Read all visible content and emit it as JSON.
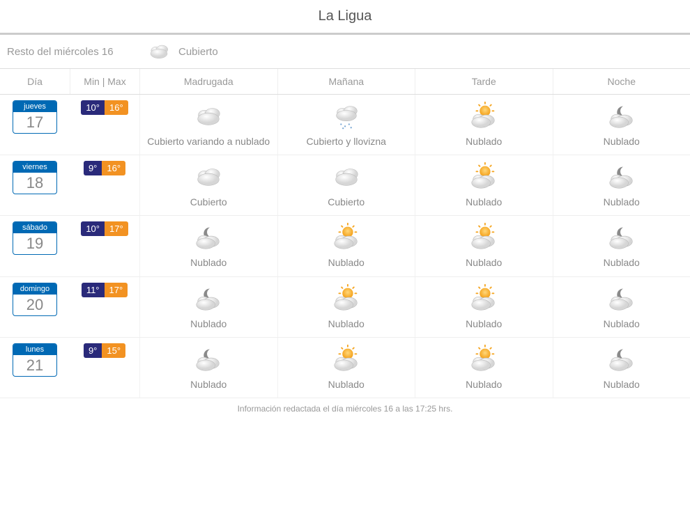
{
  "title": "La Ligua",
  "current": {
    "label": "Resto del miércoles 16",
    "icon": "overcast",
    "condition": "Cubierto"
  },
  "headers": {
    "day": "Día",
    "minmax": "Min | Max",
    "periods": [
      "Madrugada",
      "Mañana",
      "Tarde",
      "Noche"
    ]
  },
  "forecast": [
    {
      "dayName": "jueves",
      "dayNum": "17",
      "min": "10°",
      "max": "16°",
      "periods": [
        {
          "icon": "overcast",
          "label": "Cubierto variando a nublado"
        },
        {
          "icon": "drizzle",
          "label": "Cubierto y llovizna"
        },
        {
          "icon": "partly",
          "label": "Nublado"
        },
        {
          "icon": "night-cloudy",
          "label": "Nublado"
        }
      ]
    },
    {
      "dayName": "viernes",
      "dayNum": "18",
      "min": "9°",
      "max": "16°",
      "periods": [
        {
          "icon": "overcast",
          "label": "Cubierto"
        },
        {
          "icon": "overcast",
          "label": "Cubierto"
        },
        {
          "icon": "partly",
          "label": "Nublado"
        },
        {
          "icon": "night-cloudy",
          "label": "Nublado"
        }
      ]
    },
    {
      "dayName": "sábado",
      "dayNum": "19",
      "min": "10°",
      "max": "17°",
      "periods": [
        {
          "icon": "night-cloudy",
          "label": "Nublado"
        },
        {
          "icon": "partly",
          "label": "Nublado"
        },
        {
          "icon": "partly",
          "label": "Nublado"
        },
        {
          "icon": "night-cloudy",
          "label": "Nublado"
        }
      ]
    },
    {
      "dayName": "domingo",
      "dayNum": "20",
      "min": "11°",
      "max": "17°",
      "periods": [
        {
          "icon": "night-cloudy",
          "label": "Nublado"
        },
        {
          "icon": "partly",
          "label": "Nublado"
        },
        {
          "icon": "partly",
          "label": "Nublado"
        },
        {
          "icon": "night-cloudy",
          "label": "Nublado"
        }
      ]
    },
    {
      "dayName": "lunes",
      "dayNum": "21",
      "min": "9°",
      "max": "15°",
      "periods": [
        {
          "icon": "night-cloudy",
          "label": "Nublado"
        },
        {
          "icon": "partly",
          "label": "Nublado"
        },
        {
          "icon": "partly",
          "label": "Nublado"
        },
        {
          "icon": "night-cloudy",
          "label": "Nublado"
        }
      ]
    }
  ],
  "footer": "Información redactada el día miércoles 16 a las 17:25 hrs.",
  "colors": {
    "accent_blue": "#0069b4",
    "temp_min_bg": "#2a2a7a",
    "temp_max_bg": "#f29222",
    "text_muted": "#999999",
    "border": "#dddddd",
    "sun": "#f5a623",
    "cloud_light": "#e8e8e8",
    "cloud_dark": "#c9c9c9",
    "moon": "#7a7a7a"
  }
}
